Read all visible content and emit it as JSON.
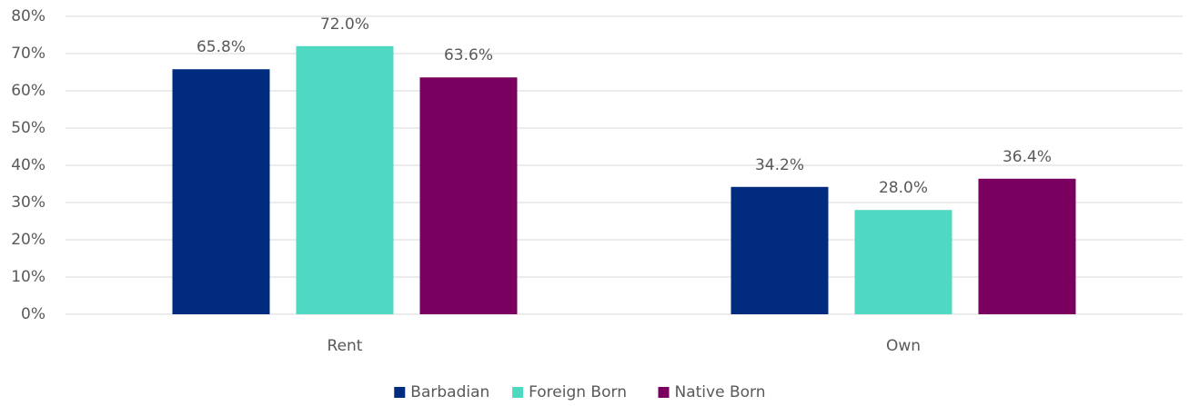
{
  "chart_data": {
    "type": "bar",
    "categories": [
      "Rent",
      "Own"
    ],
    "series": [
      {
        "name": "Barbadian",
        "color": "#002b7f",
        "values": [
          65.8,
          34.2
        ],
        "value_labels": [
          "65.8%",
          "34.2%"
        ]
      },
      {
        "name": "Foreign Born",
        "color": "#4fd8c2",
        "values": [
          72.0,
          28.0
        ],
        "value_labels": [
          "72.0%",
          "28.0%"
        ]
      },
      {
        "name": "Native Born",
        "color": "#7a005f",
        "values": [
          63.6,
          36.4
        ],
        "value_labels": [
          "63.6%",
          "36.4%"
        ]
      }
    ],
    "ylim": [
      0,
      80
    ],
    "yticks": [
      {
        "value": 0,
        "label": "0%"
      },
      {
        "value": 10,
        "label": "10%"
      },
      {
        "value": 20,
        "label": "20%"
      },
      {
        "value": 30,
        "label": "30%"
      },
      {
        "value": 40,
        "label": "40%"
      },
      {
        "value": 50,
        "label": "50%"
      },
      {
        "value": 60,
        "label": "60%"
      },
      {
        "value": 70,
        "label": "70%"
      },
      {
        "value": 80,
        "label": "80%"
      }
    ],
    "grid": true,
    "legend": "bottom"
  }
}
